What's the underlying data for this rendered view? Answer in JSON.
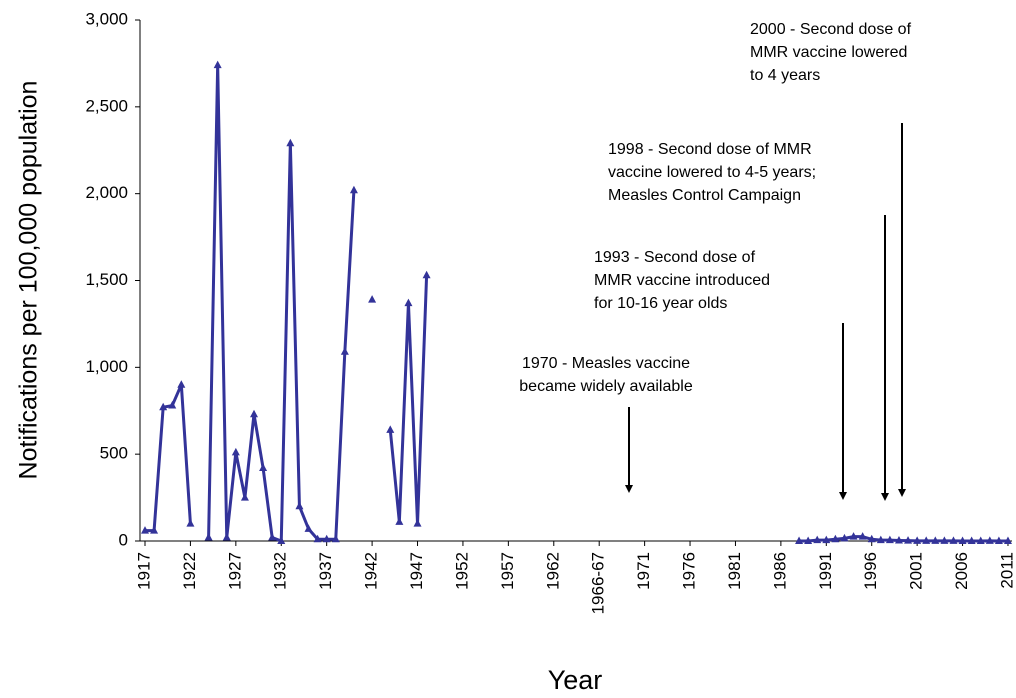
{
  "chart_data": {
    "type": "line",
    "y_label": "Notifications per 100,000 population",
    "x_label": "Year",
    "categories": [
      "1917",
      null,
      null,
      null,
      null,
      "1922",
      null,
      null,
      null,
      null,
      "1927",
      null,
      null,
      null,
      null,
      "1932",
      null,
      null,
      null,
      null,
      "1937",
      null,
      null,
      null,
      null,
      "1942",
      null,
      null,
      null,
      null,
      "1947",
      null,
      null,
      null,
      null,
      "1952",
      null,
      null,
      null,
      null,
      "1957",
      null,
      null,
      null,
      null,
      "1962",
      null,
      null,
      null,
      null,
      "1966-67",
      null,
      null,
      null,
      null,
      "1971",
      null,
      null,
      null,
      null,
      "1976",
      null,
      null,
      null,
      null,
      "1981",
      null,
      null,
      null,
      null,
      "1986",
      null,
      null,
      null,
      null,
      "1991",
      null,
      null,
      null,
      null,
      "1996",
      null,
      null,
      null,
      null,
      "2001",
      null,
      null,
      null,
      null,
      "2006",
      null,
      null,
      null,
      null,
      "2011"
    ],
    "values": [
      60,
      60,
      770,
      780,
      900,
      100,
      null,
      20,
      2740,
      20,
      510,
      250,
      730,
      420,
      20,
      0,
      2290,
      200,
      70,
      10,
      10,
      10,
      1090,
      2020,
      null,
      1390,
      null,
      640,
      110,
      1370,
      100,
      1530,
      null,
      null,
      null,
      null,
      null,
      null,
      null,
      null,
      null,
      null,
      null,
      null,
      null,
      null,
      null,
      null,
      null,
      null,
      null,
      null,
      null,
      null,
      null,
      null,
      null,
      null,
      null,
      null,
      null,
      null,
      null,
      null,
      null,
      null,
      null,
      null,
      null,
      null,
      null,
      null,
      0,
      0,
      5,
      5,
      10,
      15,
      25,
      25,
      10,
      5,
      5,
      3,
      2,
      1,
      1,
      1,
      1,
      1,
      0,
      0,
      0,
      1,
      0,
      0
    ],
    "color": "#333399",
    "ylim": [
      0,
      3000
    ],
    "yticks": [
      0,
      500,
      {
        "value": 1000,
        "label": "1,000"
      },
      {
        "value": 1500,
        "label": "1,500"
      },
      {
        "value": 2000,
        "label": "2,000"
      },
      {
        "value": 2500,
        "label": "2,500"
      },
      {
        "value": 3000,
        "label": "3,000"
      }
    ],
    "annotations": [
      {
        "lines": [
          "2000 - Second dose of",
          "MMR vaccine lowered",
          "to 4 years"
        ]
      },
      {
        "lines": [
          "1998 - Second dose of MMR",
          "vaccine lowered to 4-5 years;",
          "Measles Control Campaign"
        ]
      },
      {
        "lines": [
          "1993 - Second dose of",
          "MMR vaccine introduced",
          "for 10-16 year olds"
        ]
      },
      {
        "lines": [
          "1970 - Measles vaccine",
          "became widely available"
        ]
      }
    ]
  }
}
